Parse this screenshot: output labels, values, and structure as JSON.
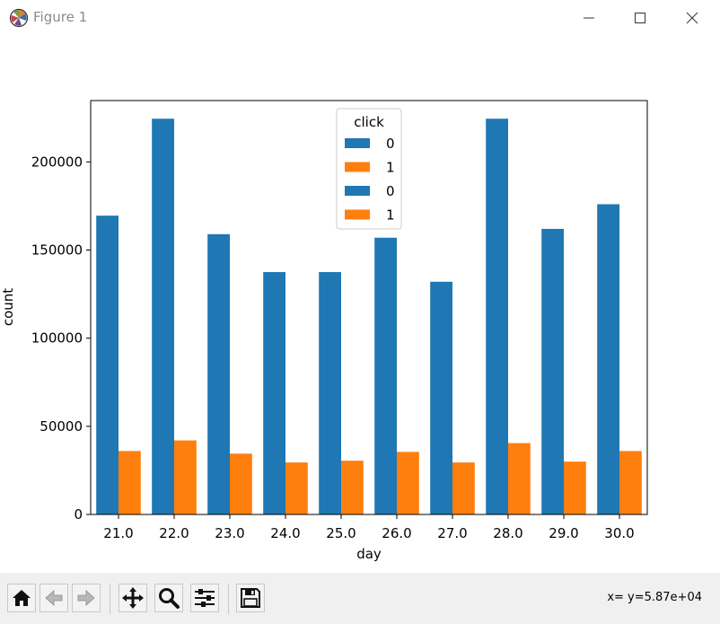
{
  "window": {
    "title": "Figure 1",
    "icons": {
      "app": "matplotlib-icon",
      "minimize": "minimize-icon",
      "maximize": "maximize-icon",
      "close": "close-icon"
    }
  },
  "toolbar": {
    "buttons": [
      {
        "name": "home-button",
        "icon": "home-icon"
      },
      {
        "name": "back-button",
        "icon": "back-arrow-icon"
      },
      {
        "name": "forward-button",
        "icon": "forward-arrow-icon"
      },
      {
        "name": "pan-button",
        "icon": "move-icon"
      },
      {
        "name": "zoom-button",
        "icon": "magnifier-icon"
      },
      {
        "name": "configure-subplots-button",
        "icon": "sliders-icon"
      },
      {
        "name": "save-button",
        "icon": "floppy-disk-icon"
      }
    ],
    "coordinates": "x= y=5.87e+04"
  },
  "chart_data": {
    "type": "bar",
    "xlabel": "day",
    "ylabel": "count",
    "categories": [
      "21.0",
      "22.0",
      "23.0",
      "24.0",
      "25.0",
      "26.0",
      "27.0",
      "28.0",
      "29.0",
      "30.0"
    ],
    "series": [
      {
        "name": "0",
        "color": "#1f77b4",
        "values": [
          169500,
          224500,
          159000,
          137500,
          137500,
          157000,
          132000,
          224500,
          162000,
          176000
        ]
      },
      {
        "name": "1",
        "color": "#ff7f0e",
        "values": [
          36000,
          42000,
          34500,
          29500,
          30500,
          35500,
          29500,
          40500,
          30000,
          36000
        ]
      }
    ],
    "ylim": [
      0,
      250000
    ],
    "yticks": [
      0,
      50000,
      100000,
      150000,
      200000
    ],
    "ytick_labels": [
      "0",
      "50000",
      "100000",
      "150000",
      "200000"
    ],
    "legend": {
      "title": "click",
      "placement": "top-center",
      "entries": [
        {
          "label": "0",
          "color": "#1f77b4"
        },
        {
          "label": "1",
          "color": "#ff7f0e"
        },
        {
          "label": "0",
          "color": "#1f77b4"
        },
        {
          "label": "1",
          "color": "#ff7f0e"
        }
      ]
    },
    "grid": false
  }
}
